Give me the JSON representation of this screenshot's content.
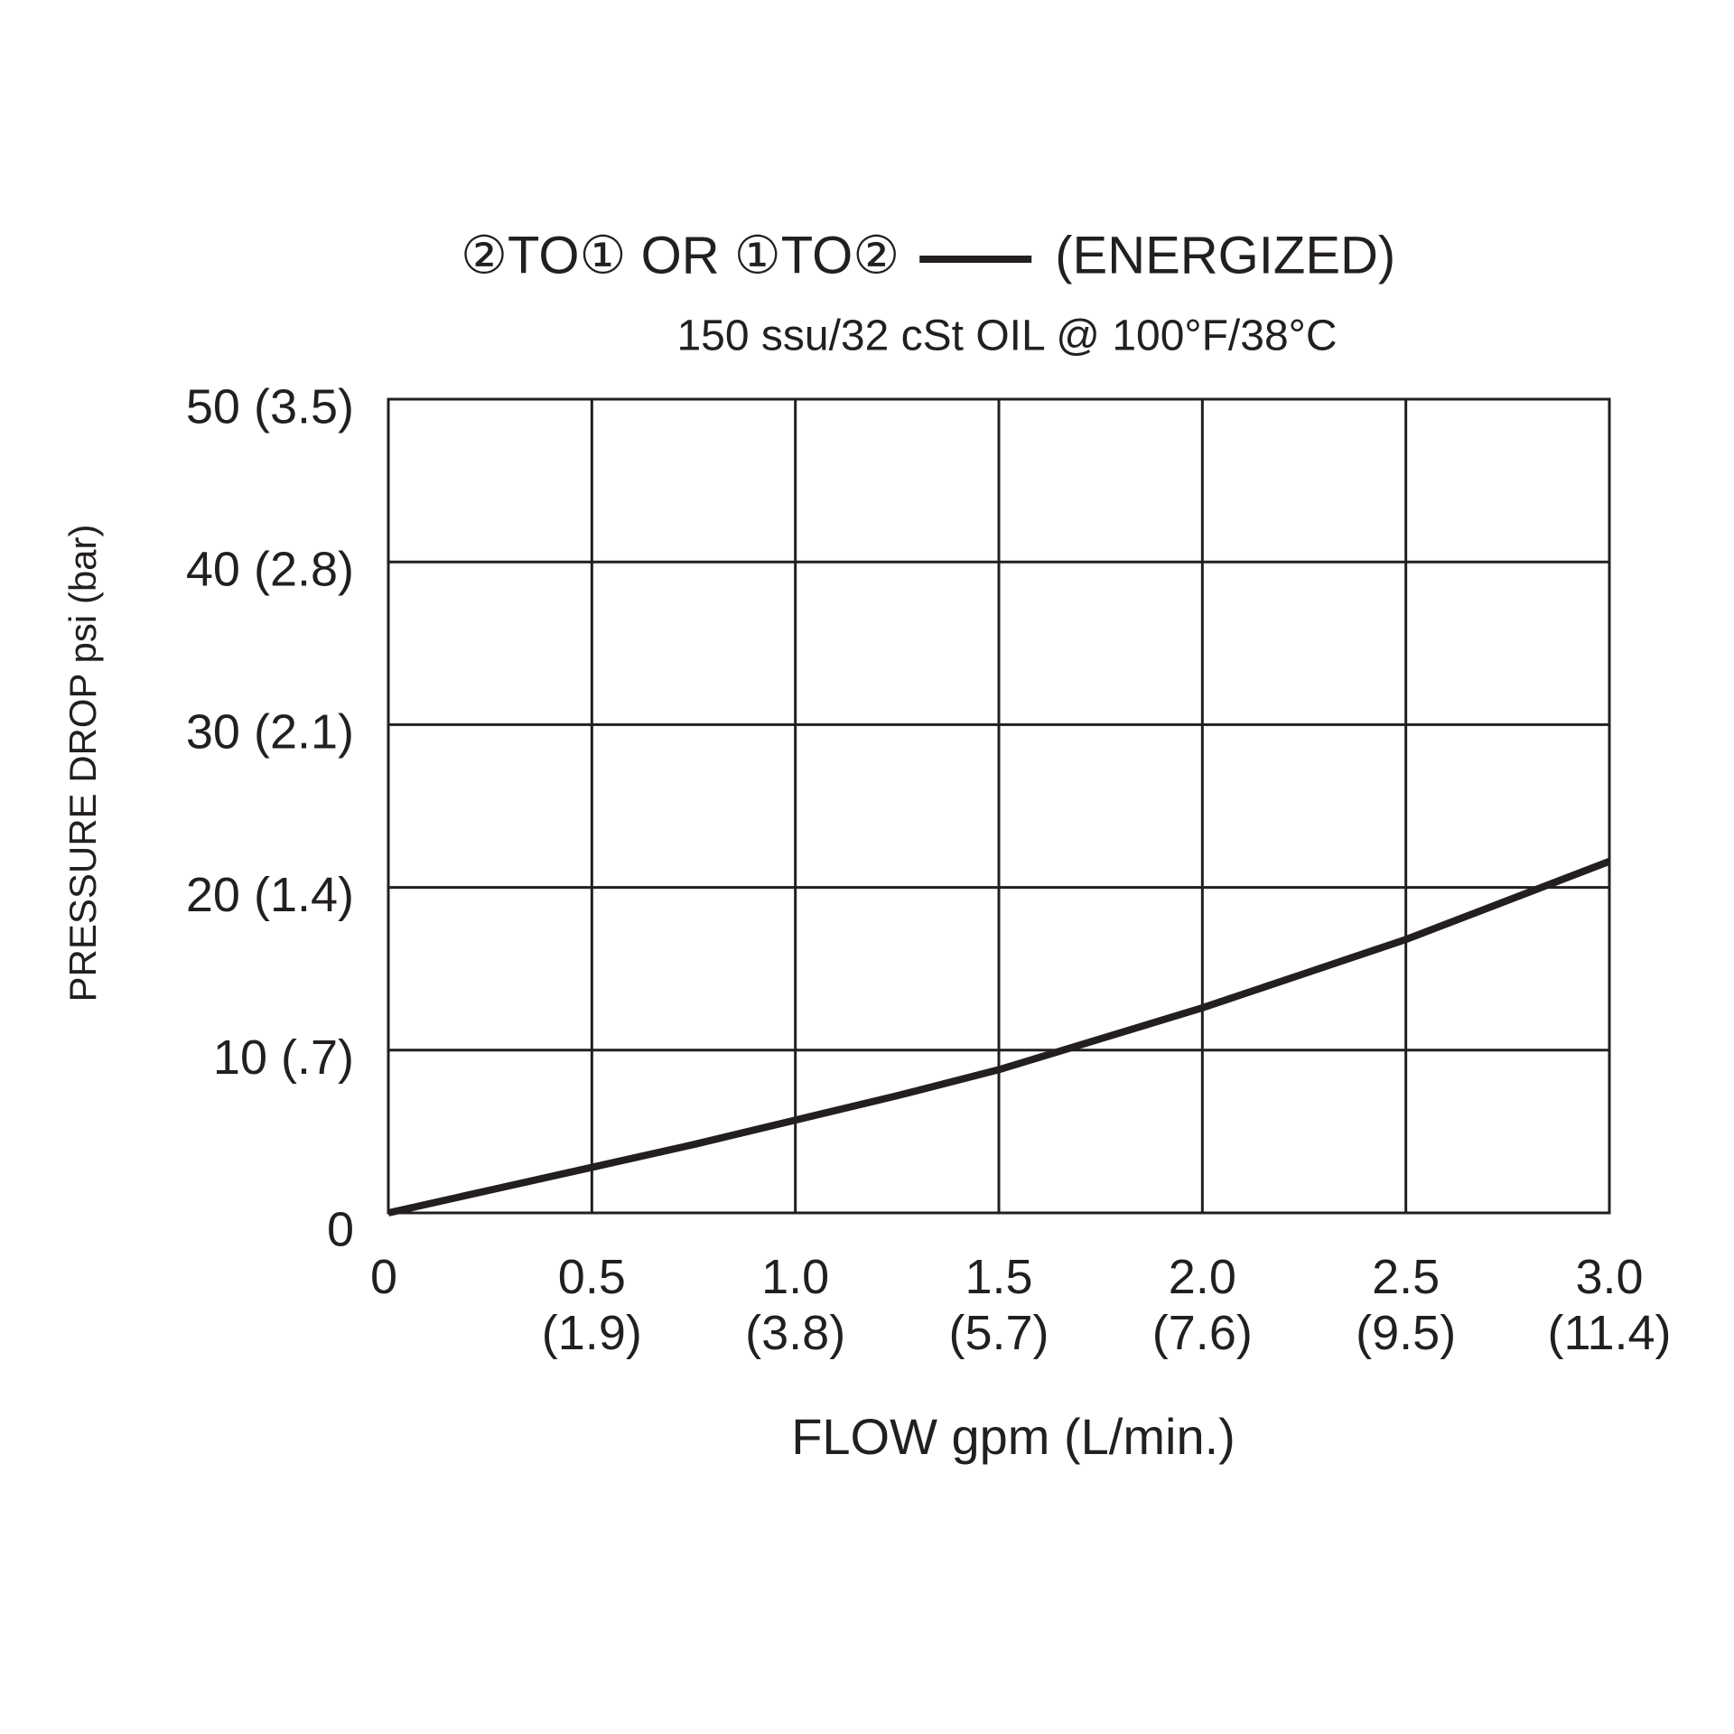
{
  "chart_data": {
    "type": "line",
    "title": "②TO①  OR  ①TO②",
    "subtitle": "150 ssu/32 cSt OIL @ 100°F/38°C",
    "x_label": "FLOW gpm (L/min.)",
    "y_label": "PRESSURE DROP psi (bar)",
    "x": [
      0,
      0.25,
      0.5,
      0.75,
      1.0,
      1.25,
      1.5,
      1.75,
      2.0,
      2.25,
      2.5,
      2.75,
      3.0
    ],
    "series": [
      {
        "name": "(ENERGIZED)",
        "color": "#231f20",
        "values": [
          0,
          1.4,
          2.8,
          4.2,
          5.7,
          7.2,
          8.8,
          10.7,
          12.6,
          14.7,
          16.8,
          19.2,
          21.6
        ]
      }
    ],
    "xlim": [
      0,
      3
    ],
    "ylim": [
      0,
      50
    ],
    "xticks": [
      0,
      {
        "value": 0.5,
        "label": "0.5 (1.9)"
      },
      {
        "value": 1,
        "label": "1.0 (3.8)"
      },
      {
        "value": 1.5,
        "label": "1.5 (5.7)"
      },
      {
        "value": 2,
        "label": "2.0 (7.6)"
      },
      {
        "value": 2.5,
        "label": "2.5 (9.5)"
      },
      {
        "value": 3,
        "label": "3.0 (11.4)"
      }
    ],
    "yticks": [
      0,
      {
        "value": 10,
        "label": "10 (.7)"
      },
      {
        "value": 20,
        "label": "20 (1.4)"
      },
      {
        "value": 30,
        "label": "30 (2.1)"
      },
      {
        "value": 40,
        "label": "40 (2.8)"
      },
      {
        "value": 50,
        "label": "50 (3.5)"
      }
    ],
    "grid": true
  }
}
